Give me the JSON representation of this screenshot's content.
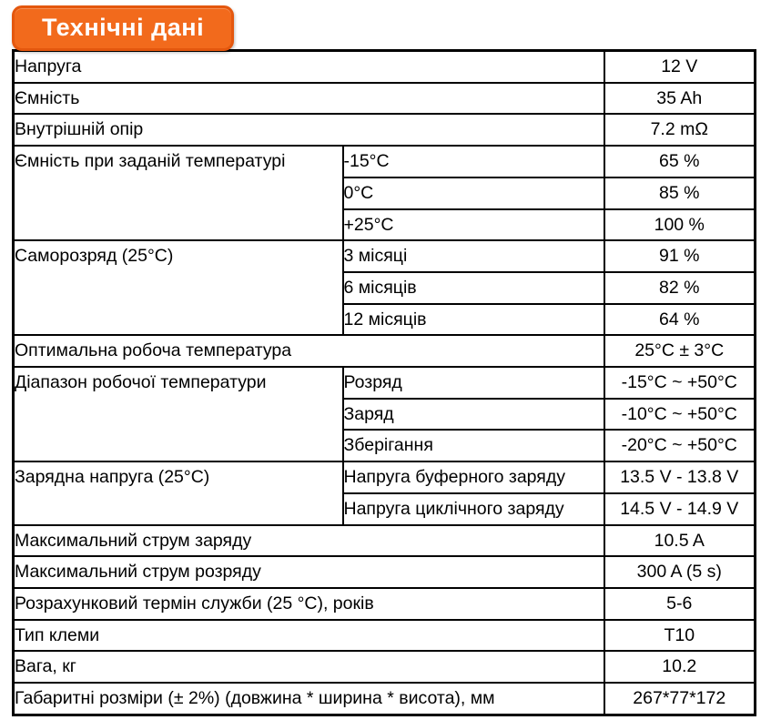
{
  "title": "Технічні дані",
  "colors": {
    "accent": "#F26A1C",
    "accent_border": "#E4570E",
    "table_border": "#000000",
    "text": "#000000",
    "title_text": "#FFFFFF",
    "background": "#FFFFFF"
  },
  "table": {
    "rows": [
      {
        "label": "Напруга",
        "value": "12 V"
      },
      {
        "label": "Ємність",
        "value": "35 Ah"
      },
      {
        "label": "Внутрішній опір",
        "value": "7.2 mΩ"
      },
      {
        "label": "Ємність при заданій температурі",
        "subrows": [
          {
            "sub": "-15°C",
            "value": "65 %"
          },
          {
            "sub": "0°C",
            "value": "85 %"
          },
          {
            "sub": "+25°C",
            "value": "100 %"
          }
        ]
      },
      {
        "label": "Саморозряд (25°C)",
        "subrows": [
          {
            "sub": "3 місяці",
            "value": "91 %"
          },
          {
            "sub": "6 місяців",
            "value": "82 %"
          },
          {
            "sub": "12 місяців",
            "value": "64 %"
          }
        ]
      },
      {
        "label": "Оптимальна робоча температура",
        "value": "25°C ± 3°C"
      },
      {
        "label": "Діапазон робочої температури",
        "subrows": [
          {
            "sub": "Розряд",
            "value": "-15°C ~ +50°C"
          },
          {
            "sub": "Заряд",
            "value": "-10°C ~ +50°C"
          },
          {
            "sub": "Зберігання",
            "value": "-20°C ~ +50°C"
          }
        ]
      },
      {
        "label": "Зарядна напруга (25°C)",
        "subrows": [
          {
            "sub": "Напруга буферного заряду",
            "value": "13.5 V - 13.8 V"
          },
          {
            "sub": "Напруга циклічного заряду",
            "value": "14.5 V - 14.9 V"
          }
        ]
      },
      {
        "label": "Максимальний струм заряду",
        "value": "10.5 A"
      },
      {
        "label": "Максимальний струм розряду",
        "value": "300 A (5 s)"
      },
      {
        "label": "Розрахунковий термін служби (25 °C), років",
        "value": "5-6"
      },
      {
        "label": "Тип клеми",
        "value": "T10"
      },
      {
        "label": "Вага, кг",
        "value": "10.2"
      },
      {
        "label": "Габаритні розміри (± 2%) (довжина * ширина * висота), мм",
        "value": "267*77*172"
      }
    ]
  }
}
